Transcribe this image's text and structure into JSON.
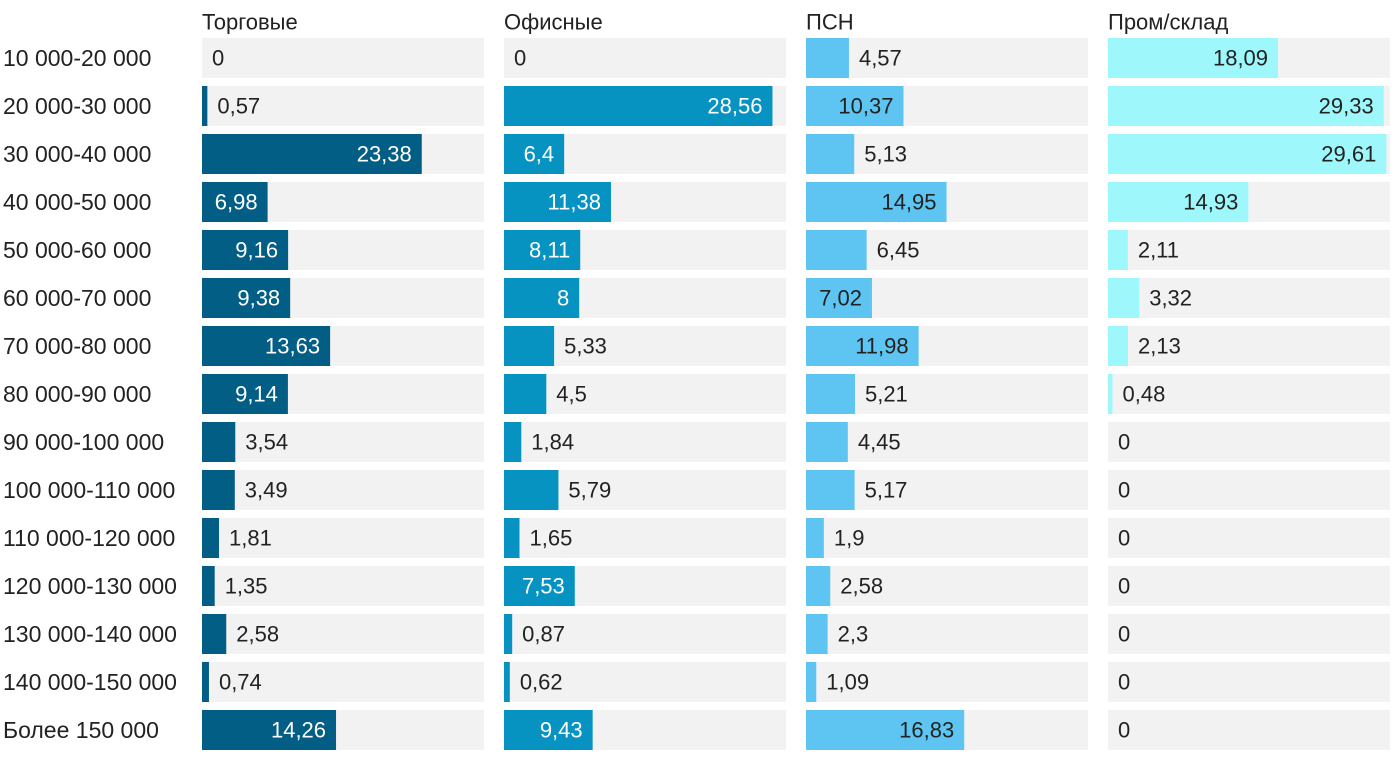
{
  "chart_data": {
    "type": "bar",
    "orientation": "horizontal",
    "layout": "small-multiples",
    "categories": [
      "10 000-20 000",
      "20 000-30 000",
      "30 000-40 000",
      "40 000-50 000",
      "50 000-60 000",
      "60 000-70 000",
      "70 000-80 000",
      "80 000-90 000",
      "90 000-100 000",
      "100 000-110 000",
      "110 000-120 000",
      "120 000-130 000",
      "130 000-140 000",
      "140 000-150 000",
      "Более 150 000"
    ],
    "xlim": [
      0,
      30
    ],
    "grid": false,
    "series": [
      {
        "name": "Торговые",
        "color": "#035e86",
        "values": [
          0,
          0.57,
          23.38,
          6.98,
          9.16,
          9.38,
          13.63,
          9.14,
          3.54,
          3.49,
          1.81,
          1.35,
          2.58,
          0.74,
          14.26
        ],
        "labels": [
          "0",
          "0,57",
          "23,38",
          "6,98",
          "9,16",
          "9,38",
          "13,63",
          "9,14",
          "3,54",
          "3,49",
          "1,81",
          "1,35",
          "2,58",
          "0,74",
          "14,26"
        ]
      },
      {
        "name": "Офисные",
        "color": "#0693c2",
        "values": [
          0,
          28.56,
          6.4,
          11.38,
          8.11,
          8,
          5.33,
          4.5,
          1.84,
          5.79,
          1.65,
          7.53,
          0.87,
          0.62,
          9.43
        ],
        "labels": [
          "0",
          "28,56",
          "6,4",
          "11,38",
          "8,11",
          "8",
          "5,33",
          "4,5",
          "1,84",
          "5,79",
          "1,65",
          "7,53",
          "0,87",
          "0,62",
          "9,43"
        ]
      },
      {
        "name": "ПСН",
        "color": "#5ec5f2",
        "values": [
          4.57,
          10.37,
          5.13,
          14.95,
          6.45,
          7.02,
          11.98,
          5.21,
          4.45,
          5.17,
          1.9,
          2.58,
          2.3,
          1.09,
          16.83
        ],
        "labels": [
          "4,57",
          "10,37",
          "5,13",
          "14,95",
          "6,45",
          "7,02",
          "11,98",
          "5,21",
          "4,45",
          "5,17",
          "1,9",
          "2,58",
          "2,3",
          "1,09",
          "16,83"
        ]
      },
      {
        "name": "Пром/склад",
        "color": "#9ef7fb",
        "values": [
          18.09,
          29.33,
          29.61,
          14.93,
          2.11,
          3.32,
          2.13,
          0.48,
          0,
          0,
          0,
          0,
          0,
          0,
          0
        ],
        "labels": [
          "18,09",
          "29,33",
          "29,61",
          "14,93",
          "2,11",
          "3,32",
          "2,13",
          "0,48",
          "0",
          "0",
          "0",
          "0",
          "0",
          "0",
          "0"
        ]
      }
    ],
    "background_color": "#f2f2f2"
  }
}
